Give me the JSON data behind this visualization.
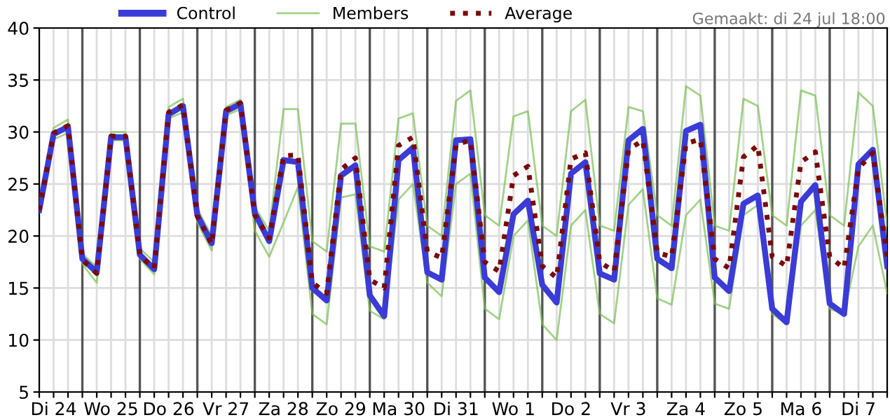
{
  "chart_data": {
    "type": "line",
    "categories": [
      null,
      "Di 24",
      null,
      null,
      null,
      "Wo 25",
      null,
      null,
      null,
      "Do 26",
      null,
      null,
      null,
      "Vr 27",
      null,
      null,
      null,
      "Za 28",
      null,
      null,
      null,
      "Zo 29",
      null,
      null,
      null,
      "Ma 30",
      null,
      null,
      null,
      "Di 31",
      null,
      null,
      null,
      "Wo 1",
      null,
      null,
      null,
      "Do 2",
      null,
      null,
      null,
      "Vr 3",
      null,
      null,
      null,
      "Za 4",
      null,
      null,
      null,
      "Zo 5",
      null,
      null,
      null,
      "Ma 6",
      null,
      null,
      null,
      "Di 7",
      null,
      null
    ],
    "series": [
      {
        "name": "Control",
        "color": "#3b3bd6",
        "line_style": "solid",
        "values": [
          22.5,
          29.8,
          30.5,
          17.8,
          16.5,
          29.5,
          29.5,
          18.2,
          16.8,
          31.7,
          32.5,
          22.0,
          19.3,
          32.0,
          32.7,
          22.2,
          19.5,
          27.3,
          27.1,
          15.0,
          13.8,
          25.8,
          26.8,
          14.3,
          12.3,
          27.3,
          28.5,
          16.5,
          15.8,
          29.2,
          29.3,
          16.0,
          14.6,
          22.1,
          23.4,
          15.3,
          13.6,
          26.0,
          27.1,
          16.4,
          15.8,
          29.2,
          30.3,
          17.8,
          16.9,
          30.1,
          30.7,
          16.0,
          14.7,
          23.1,
          23.9,
          13.0,
          11.7,
          23.3,
          24.9,
          13.5,
          12.5,
          26.9,
          28.3,
          17.1
        ]
      },
      {
        "name": "Members",
        "color": "#7bbf55",
        "line_style": "solid",
        "values": [
          22.8,
          30.4,
          31.2,
          18.3,
          17.0,
          30.0,
          30.0,
          18.8,
          17.5,
          32.4,
          33.2,
          22.6,
          20.0,
          32.4,
          33.1,
          22.8,
          20.5,
          32.2,
          32.2,
          19.5,
          18.5,
          30.8,
          30.8,
          19.0,
          18.5,
          31.3,
          31.8,
          21.0,
          20.0,
          33.0,
          34.0,
          22.0,
          21.0,
          31.5,
          32.0,
          21.0,
          20.0,
          32.0,
          33.1,
          21.0,
          20.5,
          32.4,
          32.0,
          22.0,
          21.0,
          34.4,
          33.5,
          21.0,
          20.5,
          33.2,
          32.5,
          22.0,
          21.0,
          34.0,
          33.5,
          22.0,
          21.0,
          33.8,
          32.5,
          21.0
        ]
      },
      {
        "color": "#7bbf55",
        "line_style": "solid",
        "values": [
          22.3,
          29.3,
          29.9,
          17.3,
          15.5,
          29.2,
          29.2,
          17.8,
          16.3,
          31.3,
          31.9,
          21.3,
          18.6,
          31.6,
          32.2,
          20.5,
          18.0,
          21.3,
          24.7,
          12.5,
          11.5,
          23.7,
          24.0,
          12.8,
          12.0,
          23.5,
          25.0,
          15.5,
          14.2,
          25.0,
          26.0,
          13.0,
          12.0,
          20.0,
          21.5,
          11.5,
          10.0,
          21.0,
          22.5,
          12.5,
          11.6,
          23.0,
          24.5,
          14.0,
          13.4,
          22.0,
          23.5,
          13.5,
          13.0,
          22.0,
          23.0,
          12.5,
          11.5,
          21.0,
          22.5,
          13.0,
          12.5,
          19.0,
          21.0,
          14.5
        ]
      },
      {
        "name": "Average",
        "color": "#7a0a0a",
        "line_style": "dotted",
        "values": [
          22.5,
          29.9,
          30.6,
          17.7,
          16.4,
          29.6,
          29.6,
          18.1,
          16.9,
          31.9,
          32.6,
          21.9,
          19.2,
          32.1,
          32.8,
          22.0,
          19.8,
          27.7,
          27.8,
          15.5,
          14.5,
          26.4,
          27.5,
          15.8,
          15.0,
          28.7,
          29.5,
          18.5,
          17.9,
          28.8,
          29.2,
          17.5,
          16.6,
          25.8,
          26.7,
          17.1,
          16.0,
          27.4,
          28.0,
          17.5,
          16.6,
          28.3,
          29.2,
          18.4,
          18.0,
          28.9,
          29.3,
          17.8,
          16.9,
          27.6,
          28.7,
          18.0,
          17.1,
          27.1,
          28.1,
          18.0,
          16.9,
          26.5,
          28.0,
          18.0
        ]
      }
    ],
    "ylim": [
      5,
      40
    ],
    "yticks": [
      5,
      10,
      15,
      20,
      25,
      30,
      35,
      40
    ],
    "grid": true,
    "legend": "top left",
    "annotations": [
      "Gemaakt: di 24 jul 18:00"
    ]
  }
}
